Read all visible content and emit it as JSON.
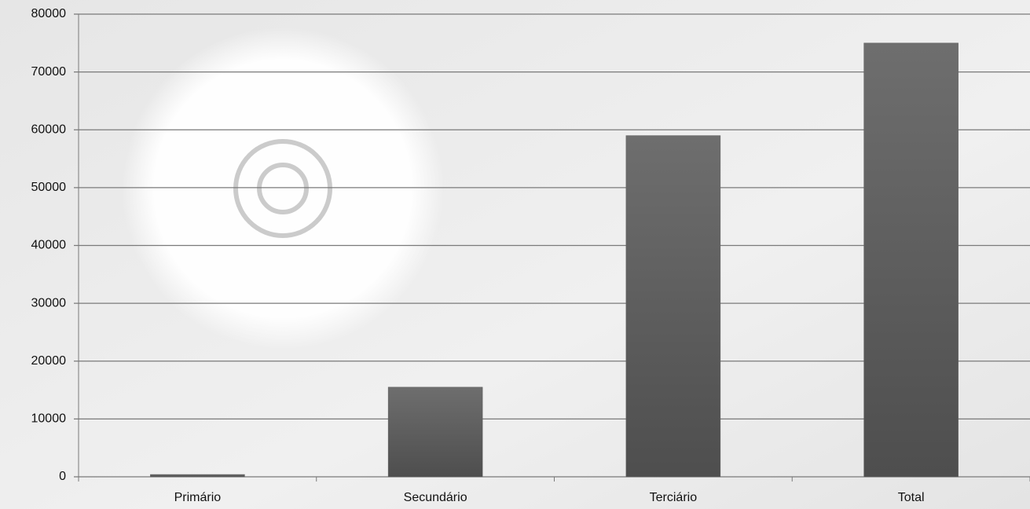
{
  "chart_data": {
    "type": "bar",
    "categories": [
      "Primário",
      "Secundário",
      "Terciário",
      "Total"
    ],
    "values": [
      400,
      15500,
      59000,
      75000
    ],
    "color": "#5f5f5f",
    "ylim": [
      0,
      80000
    ],
    "yticks": [
      0,
      10000,
      20000,
      30000,
      40000,
      50000,
      60000,
      70000,
      80000
    ],
    "grid": true
  }
}
